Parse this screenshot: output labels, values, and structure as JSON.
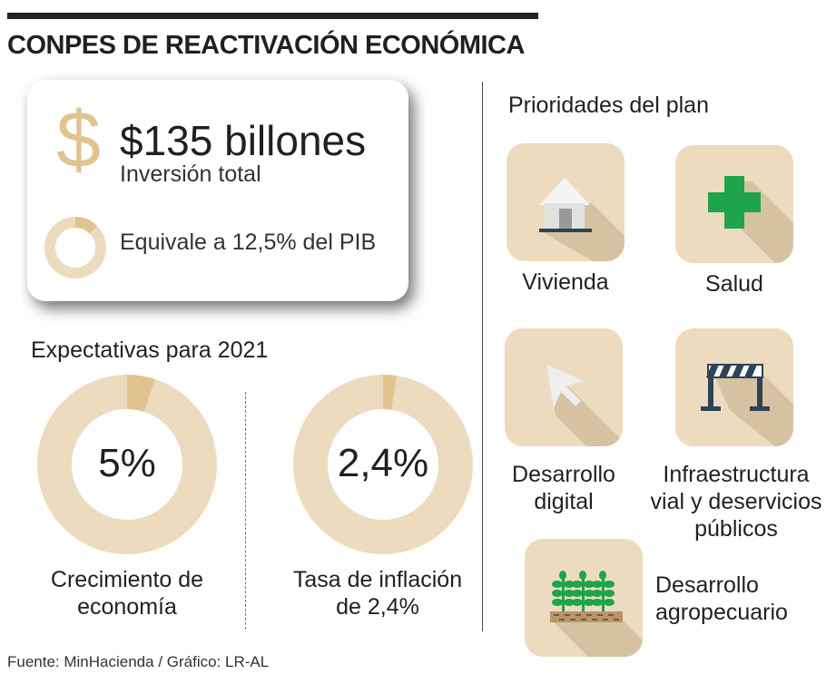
{
  "header": {
    "title": "CONPES DE REACTIVACIÓN ECONÓMICA"
  },
  "investment": {
    "symbol": "$",
    "amount": "$135 billones",
    "label": "Inversión total",
    "pib_text": "Equivale a 12,5% del PIB",
    "pib_share": 0.125
  },
  "expectations": {
    "title": "Expectativas para 2021",
    "items": [
      {
        "value": "5%",
        "caption_line1": "Crecimiento de",
        "caption_line2": "economía",
        "share": 0.05
      },
      {
        "value": "2,4%",
        "caption_line1": "Tasa de inflación",
        "caption_line2": "de 2,4%",
        "share": 0.024
      }
    ]
  },
  "priorities": {
    "title": "Prioridades del plan",
    "items": [
      {
        "label_line1": "Vivienda",
        "label_line2": "",
        "label_line3": "",
        "icon": "house-icon"
      },
      {
        "label_line1": "Salud",
        "label_line2": "",
        "label_line3": "",
        "icon": "health-cross-icon"
      },
      {
        "label_line1": "Desarrollo",
        "label_line2": "digital",
        "label_line3": "",
        "icon": "cursor-arrow-icon"
      },
      {
        "label_line1": "Infraestructura",
        "label_line2": "vial y deservicios",
        "label_line3": "públicos",
        "icon": "road-barrier-icon"
      },
      {
        "label_line1": "Desarrollo",
        "label_line2": "agropecuario",
        "label_line3": "",
        "icon": "crops-icon"
      }
    ]
  },
  "colors": {
    "ring_light": "#ecdbbe",
    "ring_accent": "#e1c38f",
    "tile_bg": "#ecdbbe",
    "tile_shadow": "#d6c2a0",
    "icon_green": "#1ea44b",
    "icon_navy": "#2f4358",
    "text": "#231f20"
  },
  "footer": {
    "source": "Fuente: MinHacienda / Gráfico: LR-AL"
  }
}
